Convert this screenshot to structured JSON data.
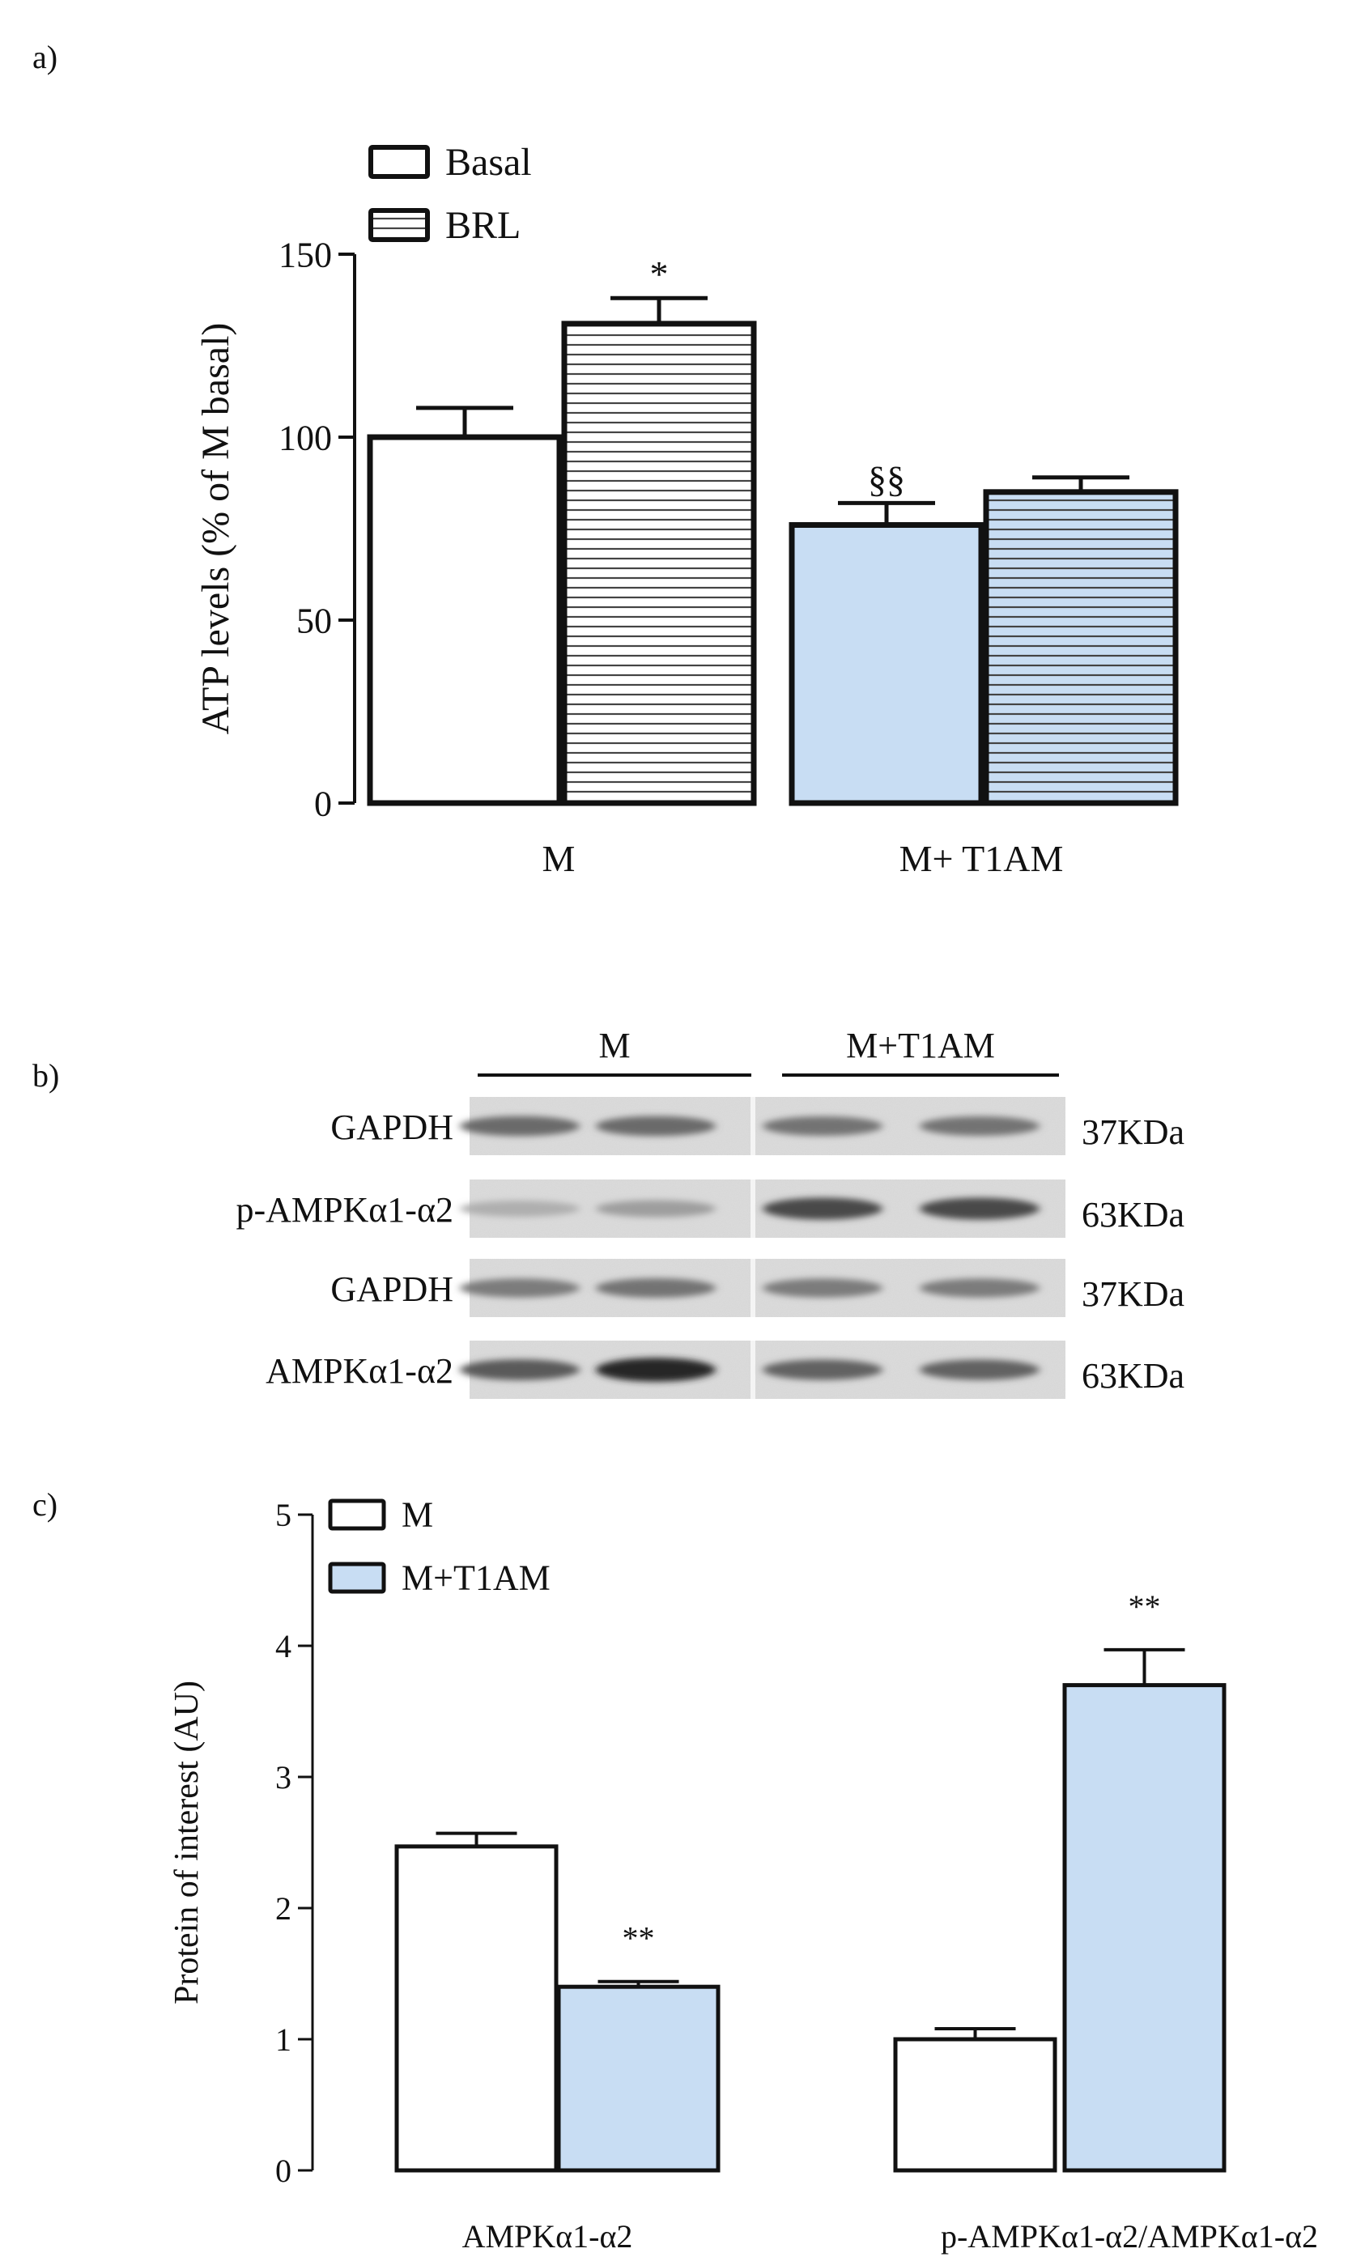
{
  "panels": {
    "a": "a)",
    "b": "b)",
    "c": "c)"
  },
  "colors": {
    "white_bar": "#ffffff",
    "blue_bar": "#c8ddf3",
    "ink": "#111111"
  },
  "chart_data": [
    {
      "type": "bar",
      "panel": "a)",
      "ylabel": "ATP levels (% of M basal)",
      "xlabel": "",
      "ylim": [
        0,
        150
      ],
      "yticks": [
        "0",
        "50",
        "100",
        "150"
      ],
      "ytick_values": [
        0,
        50,
        100,
        150
      ],
      "categories": [
        "M",
        "M+ T1AM"
      ],
      "legend": {
        "position": "top-left",
        "entries": [
          "Basal",
          "BRL"
        ]
      },
      "bars": [
        {
          "category": "M",
          "series": "Basal",
          "value": 100,
          "error": 8,
          "fill": "white",
          "annotation": ""
        },
        {
          "category": "M",
          "series": "BRL",
          "value": 131,
          "error": 7,
          "fill": "white-striped",
          "annotation": "*"
        },
        {
          "category": "M+ T1AM",
          "series": "Basal",
          "value": 76,
          "error": 6,
          "fill": "blue",
          "annotation": "§§"
        },
        {
          "category": "M+ T1AM",
          "series": "BRL",
          "value": 85,
          "error": 4,
          "fill": "blue-striped",
          "annotation": ""
        }
      ]
    },
    {
      "type": "bar",
      "panel": "c)",
      "ylabel": "Protein of interest (AU)",
      "xlabel": "",
      "ylim": [
        0,
        5
      ],
      "yticks": [
        "0",
        "1",
        "2",
        "3",
        "4",
        "5"
      ],
      "ytick_values": [
        0,
        1,
        2,
        3,
        4,
        5
      ],
      "categories": [
        "AMPKα1-α2",
        "p-AMPKα1-α2/AMPKα1-α2"
      ],
      "legend": {
        "position": "top-left",
        "entries": [
          "M",
          "M+T1AM"
        ]
      },
      "bars": [
        {
          "category": "AMPKα1-α2",
          "series": "M",
          "value": 2.47,
          "error": 0.1,
          "fill": "white",
          "annotation": ""
        },
        {
          "category": "AMPKα1-α2",
          "series": "M+T1AM",
          "value": 1.4,
          "error": 0.04,
          "fill": "blue",
          "annotation": "**"
        },
        {
          "category": "p-AMPKα1-α2/AMPKα1-α2",
          "series": "M",
          "value": 1.0,
          "error": 0.08,
          "fill": "white",
          "annotation": ""
        },
        {
          "category": "p-AMPKα1-α2/AMPKα1-α2",
          "series": "M+T1AM",
          "value": 3.7,
          "error": 0.27,
          "fill": "blue",
          "annotation": "**"
        }
      ]
    }
  ],
  "western_blot": {
    "groups": [
      "M",
      "M+T1AM"
    ],
    "rows": [
      {
        "protein": "GAPDH",
        "mw": "37KDa",
        "band_intensity": [
          0.55,
          0.55,
          0.5,
          0.5
        ]
      },
      {
        "protein": "p-AMPKα1-α2",
        "mw": "63KDa",
        "band_intensity": [
          0.15,
          0.25,
          0.75,
          0.75
        ]
      },
      {
        "protein": "GAPDH",
        "mw": "37KDa",
        "band_intensity": [
          0.45,
          0.5,
          0.45,
          0.45
        ]
      },
      {
        "protein": "AMPKα1-α2",
        "mw": "63KDa",
        "band_intensity": [
          0.65,
          0.95,
          0.6,
          0.6
        ]
      }
    ]
  }
}
